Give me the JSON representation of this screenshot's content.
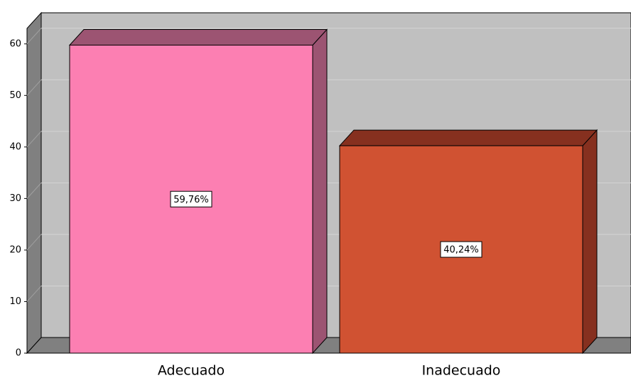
{
  "chart_data": {
    "type": "bar3d",
    "categories": [
      "Adecuado",
      "Inadecuado"
    ],
    "values": [
      59.76,
      40.24
    ],
    "value_labels": [
      "59,76%",
      "40,24%"
    ],
    "colors": [
      "#fc7fb2",
      "#d05232"
    ],
    "side_colors": [
      "#9c5472",
      "#86301f"
    ],
    "ylim": [
      0,
      63
    ],
    "yticks": [
      0,
      10,
      20,
      30,
      40,
      50,
      60
    ],
    "grid": true
  }
}
